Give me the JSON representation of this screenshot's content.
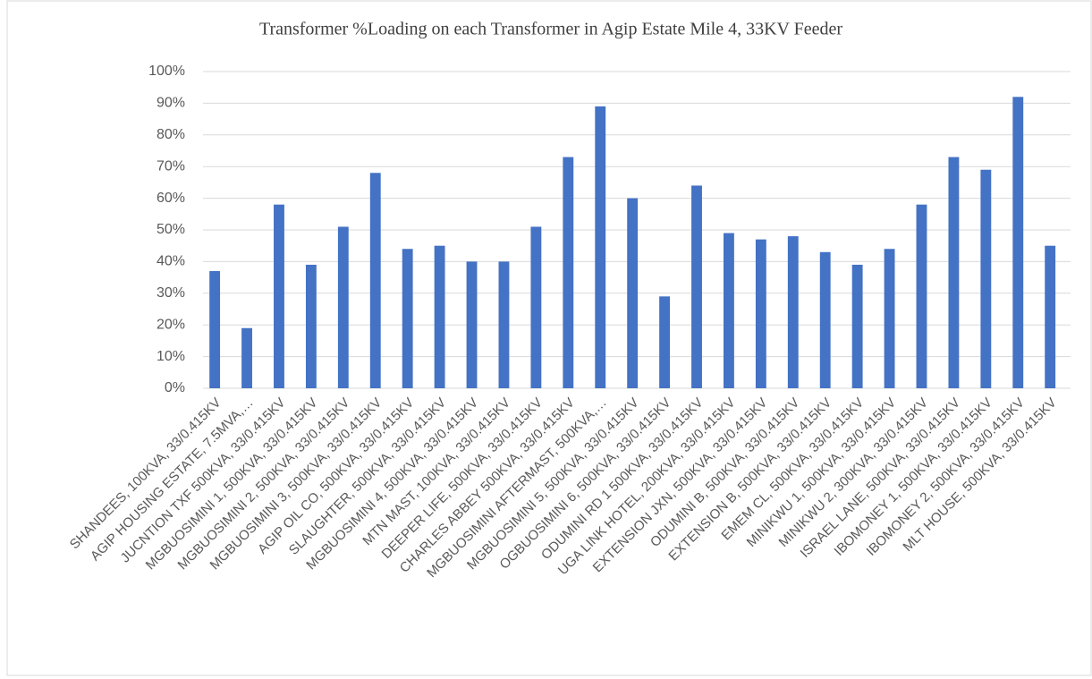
{
  "chart_data": {
    "type": "bar",
    "title": "Transformer %Loading on each Transformer in Agip Estate Mile 4, 33KV Feeder",
    "categories": [
      "SHANDEES, 100KVA, 33/0.415KV",
      "AGIP HOUSING ESTATE, 7.5MVA,…",
      "JUCNTION TXF 500KVA, 33/0.415KV",
      "MGBUOSIMINI 1, 500KVA, 33/0.415KV",
      "MGBUOSIMINI 2, 500KVA, 33/0.415KV",
      "MGBUOSIMINI 3, 500KVA, 33/0.415KV",
      "AGIP OIL CO, 500KVA, 33/0.415KV",
      "SLAUGHTER, 500KVA, 33/0.415KV",
      "MGBUOSIMINI 4, 500KVA, 33/0.415KV",
      "MTN MAST, 100KVA, 33/0.415KV",
      "DEEPER LIFE, 500KVA, 33/0.415KV",
      "CHARLES ABBEY 500KVA, 33/0.415KV",
      "MGBUOSIMINI AFTERMAST, 500KVA,…",
      "MGBUOSIMINI 5, 500KVA, 33/0.415KV",
      "OGBUOSIMINI 6, 500KVA, 33/0.415KV",
      "ODUMINI RD 1 500KVA, 33/0.415KV",
      "UGA LINK HOTEL, 200KVA, 33/0.415KV",
      "EXTENSION JXN, 500KVA, 33/0.415KV",
      "ODUMINI B, 500KVA, 33/0.415KV",
      "EXTENSION B, 500KVA, 33/0.415KV",
      "EMEM CL, 500KVA, 33/0.415KV",
      "MINIKWU 1, 500KVA, 33/0.415KV",
      "MINIKWU 2, 300KVA, 33/0.415KV",
      "ISRAEL LANE, 500KVA, 33/0.415KV",
      "IBOMONEY 1, 500KVA, 33/0.415KV",
      "IBOMONEY 2, 500KVA, 33/0.415KV",
      "MLT HOUSE, 500KVA, 33/0.415KV"
    ],
    "values": [
      37,
      19,
      58,
      39,
      51,
      68,
      44,
      45,
      40,
      40,
      51,
      73,
      89,
      60,
      29,
      64,
      49,
      47,
      48,
      43,
      39,
      44,
      58,
      73,
      69,
      92,
      45
    ],
    "color": "#4472c4",
    "ylim": [
      0,
      100
    ],
    "yticks": [
      {
        "value": 0,
        "label": "0%"
      },
      {
        "value": 10,
        "label": "10%"
      },
      {
        "value": 20,
        "label": "20%"
      },
      {
        "value": 30,
        "label": "30%"
      },
      {
        "value": 40,
        "label": "40%"
      },
      {
        "value": 50,
        "label": "50%"
      },
      {
        "value": 60,
        "label": "60%"
      },
      {
        "value": 70,
        "label": "70%"
      },
      {
        "value": 80,
        "label": "80%"
      },
      {
        "value": 90,
        "label": "90%"
      },
      {
        "value": 100,
        "label": "100%"
      }
    ],
    "grid": true
  }
}
